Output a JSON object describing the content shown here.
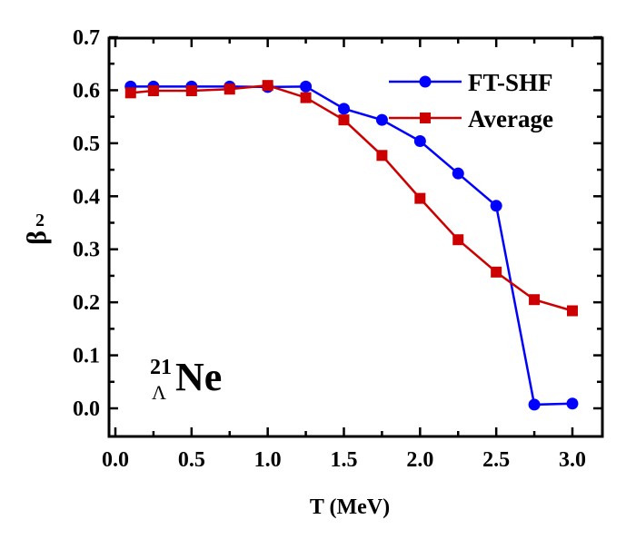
{
  "chart_data": {
    "type": "line",
    "title": "",
    "xlabel": "T (MeV)",
    "ylabel": "β",
    "ylabel_sub": "2",
    "xlim": [
      0.0,
      3.0
    ],
    "ylim": [
      0.0,
      0.7
    ],
    "xticks": [
      "0.0",
      "0.5",
      "1.0",
      "1.5",
      "2.0",
      "2.5",
      "3.0"
    ],
    "yticks": [
      "0.0",
      "0.1",
      "0.2",
      "0.3",
      "0.4",
      "0.5",
      "0.6",
      "0.7"
    ],
    "grid": false,
    "legend_position": "top-right",
    "annotation": {
      "mass": "21",
      "sub": "Λ",
      "element": "Ne"
    },
    "x": [
      0.1,
      0.25,
      0.5,
      0.75,
      1.0,
      1.25,
      1.5,
      1.75,
      2.0,
      2.25,
      2.5,
      2.75,
      3.0
    ],
    "series": [
      {
        "name": "FT-SHF",
        "color": "#0000ff",
        "marker": "circle",
        "values": [
          0.607,
          0.607,
          0.607,
          0.607,
          0.606,
          0.607,
          0.565,
          0.544,
          0.504,
          0.443,
          0.382,
          0.007,
          0.009
        ]
      },
      {
        "name": "Average",
        "color": "#cc0000",
        "marker": "square",
        "values": [
          0.595,
          0.599,
          0.599,
          0.602,
          0.609,
          0.586,
          0.544,
          0.477,
          0.396,
          0.318,
          0.257,
          0.205,
          0.184
        ]
      }
    ]
  }
}
